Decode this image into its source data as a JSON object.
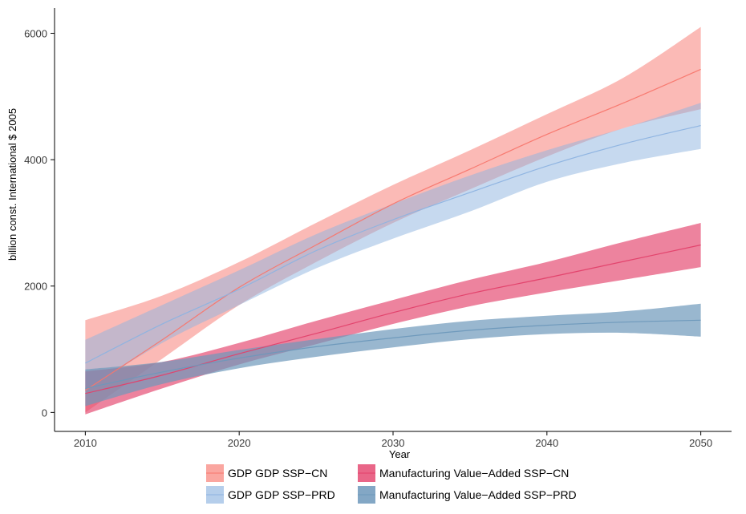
{
  "chart_data": {
    "type": "line",
    "title": "",
    "xlabel": "Year",
    "ylabel": "billion const. International $ 2005",
    "xlim": [
      2008,
      2052
    ],
    "ylim": [
      -300,
      6400
    ],
    "x_ticks": [
      2010,
      2020,
      2030,
      2040,
      2050
    ],
    "y_ticks": [
      0,
      2000,
      4000,
      6000
    ],
    "grid": false,
    "legend_position": "bottom",
    "x": [
      2010,
      2015,
      2020,
      2025,
      2030,
      2035,
      2040,
      2045,
      2050
    ],
    "series": [
      {
        "name": "GDP GDP SSP−CN",
        "color": "#f8766d",
        "fill_opacity": 0.5,
        "values": [
          350,
          1150,
          1980,
          2650,
          3300,
          3850,
          4400,
          4900,
          5430
        ],
        "lower": [
          0,
          850,
          1700,
          2380,
          3000,
          3530,
          4050,
          4500,
          4800
        ],
        "upper": [
          1460,
          1850,
          2380,
          3000,
          3600,
          4150,
          4720,
          5300,
          6100
        ]
      },
      {
        "name": "GDP GDP SSP−PRD",
        "color": "#8db3e0",
        "fill_opacity": 0.5,
        "values": [
          780,
          1400,
          1950,
          2560,
          3050,
          3480,
          3900,
          4250,
          4540
        ],
        "lower": [
          350,
          1100,
          1700,
          2280,
          2750,
          3180,
          3650,
          3950,
          4170
        ],
        "upper": [
          1150,
          1700,
          2250,
          2820,
          3300,
          3750,
          4150,
          4500,
          4900
        ]
      },
      {
        "name": "Manufacturing Value−Added SSP−CN",
        "color": "#e3406a",
        "fill_opacity": 0.65,
        "values": [
          300,
          590,
          930,
          1250,
          1580,
          1880,
          2130,
          2390,
          2650
        ],
        "lower": [
          -30,
          380,
          760,
          1080,
          1400,
          1680,
          1900,
          2100,
          2300
        ],
        "upper": [
          650,
          800,
          1100,
          1450,
          1780,
          2100,
          2380,
          2700,
          3000
        ]
      },
      {
        "name": "Manufacturing Value−Added SSP−PRD",
        "color": "#6d98bb",
        "fill_opacity": 0.7,
        "values": [
          380,
          640,
          860,
          1040,
          1180,
          1300,
          1380,
          1430,
          1460
        ],
        "lower": [
          100,
          450,
          700,
          880,
          1030,
          1160,
          1240,
          1260,
          1200
        ],
        "upper": [
          680,
          800,
          990,
          1160,
          1320,
          1450,
          1530,
          1600,
          1720
        ]
      }
    ]
  }
}
